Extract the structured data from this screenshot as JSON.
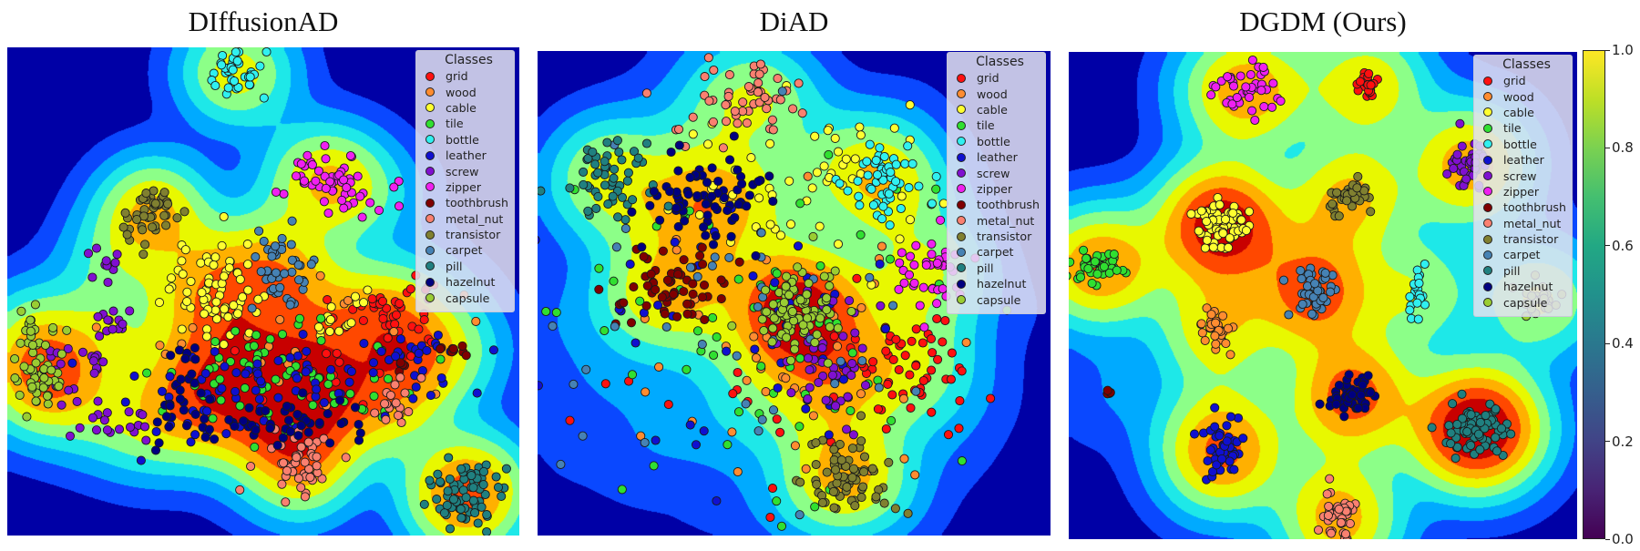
{
  "chart_data": [
    {
      "type": "scatter",
      "subtype": "t-SNE embedding with KDE density contours (jet colormap)",
      "title": "DIffusionAD",
      "xlabel": "",
      "ylabel": "",
      "xlim": [
        0,
        1
      ],
      "ylim": [
        0,
        1
      ],
      "grid": false,
      "legend": {
        "title": "Classes",
        "placement": "top-right"
      },
      "series": [
        {
          "name": "grid",
          "clusters": [
            {
              "x": 0.76,
              "y": 0.55,
              "sx": 0.04,
              "sy": 0.04,
              "n": 40
            },
            {
              "x": 0.62,
              "y": 0.66,
              "sx": 0.1,
              "sy": 0.05,
              "n": 25
            }
          ]
        },
        {
          "name": "wood",
          "clusters": [
            {
              "x": 0.5,
              "y": 0.62,
              "sx": 0.16,
              "sy": 0.07,
              "n": 25
            }
          ]
        },
        {
          "name": "cable",
          "clusters": [
            {
              "x": 0.4,
              "y": 0.5,
              "sx": 0.05,
              "sy": 0.05,
              "n": 70
            },
            {
              "x": 0.63,
              "y": 0.57,
              "sx": 0.02,
              "sy": 0.015,
              "n": 12
            },
            {
              "x": 0.7,
              "y": 0.51,
              "sx": 0.01,
              "sy": 0.01,
              "n": 4
            }
          ]
        },
        {
          "name": "tile",
          "clusters": [
            {
              "x": 0.56,
              "y": 0.67,
              "sx": 0.14,
              "sy": 0.05,
              "n": 70
            }
          ]
        },
        {
          "name": "bottle",
          "clusters": [
            {
              "x": 0.45,
              "y": 0.05,
              "sx": 0.03,
              "sy": 0.025,
              "n": 35
            }
          ]
        },
        {
          "name": "leather",
          "clusters": [
            {
              "x": 0.53,
              "y": 0.71,
              "sx": 0.14,
              "sy": 0.05,
              "n": 80
            },
            {
              "x": 0.78,
              "y": 0.63,
              "sx": 0.04,
              "sy": 0.03,
              "n": 20
            }
          ]
        },
        {
          "name": "screw",
          "clusters": [
            {
              "x": 0.19,
              "y": 0.43,
              "sx": 0.02,
              "sy": 0.02,
              "n": 12
            },
            {
              "x": 0.21,
              "y": 0.55,
              "sx": 0.02,
              "sy": 0.02,
              "n": 12
            },
            {
              "x": 0.17,
              "y": 0.64,
              "sx": 0.015,
              "sy": 0.025,
              "n": 10
            },
            {
              "x": 0.22,
              "y": 0.77,
              "sx": 0.04,
              "sy": 0.02,
              "n": 18
            },
            {
              "x": 0.12,
              "y": 0.7,
              "sx": 0.015,
              "sy": 0.04,
              "n": 10
            },
            {
              "x": 0.09,
              "y": 0.62,
              "sx": 0.01,
              "sy": 0.01,
              "n": 3
            }
          ]
        },
        {
          "name": "zipper",
          "clusters": [
            {
              "x": 0.63,
              "y": 0.28,
              "sx": 0.05,
              "sy": 0.04,
              "n": 55
            }
          ]
        },
        {
          "name": "toothbrush",
          "clusters": [
            {
              "x": 0.87,
              "y": 0.62,
              "sx": 0.015,
              "sy": 0.008,
              "n": 10
            },
            {
              "x": 0.77,
              "y": 0.66,
              "sx": 0.004,
              "sy": 0.01,
              "n": 4
            }
          ]
        },
        {
          "name": "metal_nut",
          "clusters": [
            {
              "x": 0.57,
              "y": 0.86,
              "sx": 0.04,
              "sy": 0.035,
              "n": 45
            },
            {
              "x": 0.75,
              "y": 0.74,
              "sx": 0.02,
              "sy": 0.03,
              "n": 18
            }
          ]
        },
        {
          "name": "transistor",
          "clusters": [
            {
              "x": 0.28,
              "y": 0.34,
              "sx": 0.025,
              "sy": 0.03,
              "n": 45
            }
          ]
        },
        {
          "name": "carpet",
          "clusters": [
            {
              "x": 0.54,
              "y": 0.46,
              "sx": 0.035,
              "sy": 0.05,
              "n": 45
            }
          ]
        },
        {
          "name": "pill",
          "clusters": [
            {
              "x": 0.9,
              "y": 0.91,
              "sx": 0.04,
              "sy": 0.035,
              "n": 70
            }
          ]
        },
        {
          "name": "hazelnut",
          "clusters": [
            {
              "x": 0.5,
              "y": 0.76,
              "sx": 0.12,
              "sy": 0.03,
              "n": 60
            },
            {
              "x": 0.35,
              "y": 0.68,
              "sx": 0.015,
              "sy": 0.04,
              "n": 18
            }
          ]
        },
        {
          "name": "capsule",
          "clusters": [
            {
              "x": 0.06,
              "y": 0.66,
              "sx": 0.025,
              "sy": 0.04,
              "n": 55
            },
            {
              "x": 0.045,
              "y": 0.57,
              "sx": 0.006,
              "sy": 0.025,
              "n": 10
            }
          ]
        }
      ]
    },
    {
      "type": "scatter",
      "subtype": "t-SNE embedding with KDE density contours (jet colormap)",
      "title": "DiAD",
      "xlabel": "",
      "ylabel": "",
      "xlim": [
        0,
        1
      ],
      "ylim": [
        0,
        1
      ],
      "grid": false,
      "legend": {
        "title": "Classes",
        "placement": "top-right"
      },
      "series": [
        {
          "name": "grid",
          "clusters": [
            {
              "x": 0.73,
              "y": 0.65,
              "sx": 0.06,
              "sy": 0.06,
              "n": 55
            },
            {
              "x": 0.45,
              "y": 0.75,
              "sx": 0.18,
              "sy": 0.1,
              "n": 20
            }
          ]
        },
        {
          "name": "wood",
          "clusters": [
            {
              "x": 0.45,
              "y": 0.65,
              "sx": 0.22,
              "sy": 0.15,
              "n": 45
            }
          ]
        },
        {
          "name": "cable",
          "clusters": [
            {
              "x": 0.52,
              "y": 0.26,
              "sx": 0.12,
              "sy": 0.09,
              "n": 55
            }
          ]
        },
        {
          "name": "tile",
          "clusters": [
            {
              "x": 0.4,
              "y": 0.6,
              "sx": 0.25,
              "sy": 0.2,
              "n": 70
            }
          ]
        },
        {
          "name": "bottle",
          "clusters": [
            {
              "x": 0.67,
              "y": 0.27,
              "sx": 0.04,
              "sy": 0.045,
              "n": 55
            }
          ]
        },
        {
          "name": "leather",
          "clusters": [
            {
              "x": 0.38,
              "y": 0.58,
              "sx": 0.18,
              "sy": 0.14,
              "n": 50
            }
          ]
        },
        {
          "name": "screw",
          "clusters": [
            {
              "x": 0.57,
              "y": 0.64,
              "sx": 0.05,
              "sy": 0.06,
              "n": 45
            }
          ]
        },
        {
          "name": "zipper",
          "clusters": [
            {
              "x": 0.77,
              "y": 0.46,
              "sx": 0.035,
              "sy": 0.035,
              "n": 40
            }
          ]
        },
        {
          "name": "toothbrush",
          "clusters": [
            {
              "x": 0.24,
              "y": 0.49,
              "sx": 0.06,
              "sy": 0.04,
              "n": 60
            }
          ]
        },
        {
          "name": "metal_nut",
          "clusters": [
            {
              "x": 0.38,
              "y": 0.1,
              "sx": 0.07,
              "sy": 0.04,
              "n": 55
            }
          ]
        },
        {
          "name": "transistor",
          "clusters": [
            {
              "x": 0.6,
              "y": 0.87,
              "sx": 0.045,
              "sy": 0.04,
              "n": 70
            }
          ]
        },
        {
          "name": "carpet",
          "clusters": [
            {
              "x": 0.45,
              "y": 0.55,
              "sx": 0.22,
              "sy": 0.17,
              "n": 45
            }
          ]
        },
        {
          "name": "pill",
          "clusters": [
            {
              "x": 0.13,
              "y": 0.27,
              "sx": 0.05,
              "sy": 0.04,
              "n": 55
            }
          ]
        },
        {
          "name": "hazelnut",
          "clusters": [
            {
              "x": 0.32,
              "y": 0.31,
              "sx": 0.06,
              "sy": 0.05,
              "n": 70
            }
          ]
        },
        {
          "name": "capsule",
          "clusters": [
            {
              "x": 0.51,
              "y": 0.53,
              "sx": 0.04,
              "sy": 0.04,
              "n": 90
            }
          ]
        }
      ]
    },
    {
      "type": "scatter",
      "subtype": "t-SNE embedding with KDE density contours (jet colormap)",
      "title": "DGDM (Ours)",
      "xlabel": "",
      "ylabel": "",
      "xlim": [
        0,
        1
      ],
      "ylim": [
        0,
        1
      ],
      "grid": false,
      "legend": {
        "title": "Classes",
        "placement": "top-right"
      },
      "colorbar": {
        "range": [
          0.0,
          1.0
        ],
        "ticks": [
          "0.0",
          "0.2",
          "0.4",
          "0.6",
          "0.8",
          "1.0"
        ],
        "colormap": "viridis"
      },
      "series": [
        {
          "name": "grid",
          "clusters": [
            {
              "x": 0.59,
              "y": 0.07,
              "sx": 0.015,
              "sy": 0.015,
              "n": 30
            }
          ]
        },
        {
          "name": "wood",
          "clusters": [
            {
              "x": 0.29,
              "y": 0.57,
              "sx": 0.015,
              "sy": 0.02,
              "n": 30
            }
          ]
        },
        {
          "name": "cable",
          "clusters": [
            {
              "x": 0.3,
              "y": 0.35,
              "sx": 0.025,
              "sy": 0.03,
              "n": 70
            }
          ]
        },
        {
          "name": "tile",
          "clusters": [
            {
              "x": 0.06,
              "y": 0.44,
              "sx": 0.03,
              "sy": 0.015,
              "n": 45
            }
          ]
        },
        {
          "name": "bottle",
          "clusters": [
            {
              "x": 0.685,
              "y": 0.49,
              "sx": 0.008,
              "sy": 0.03,
              "n": 22
            }
          ]
        },
        {
          "name": "leather",
          "clusters": [
            {
              "x": 0.3,
              "y": 0.81,
              "sx": 0.02,
              "sy": 0.035,
              "n": 50
            }
          ]
        },
        {
          "name": "screw",
          "clusters": [
            {
              "x": 0.79,
              "y": 0.23,
              "sx": 0.02,
              "sy": 0.025,
              "n": 40
            }
          ]
        },
        {
          "name": "zipper",
          "clusters": [
            {
              "x": 0.35,
              "y": 0.08,
              "sx": 0.03,
              "sy": 0.03,
              "n": 45
            }
          ]
        },
        {
          "name": "toothbrush",
          "clusters": [
            {
              "x": 0.08,
              "y": 0.7,
              "sx": 0.004,
              "sy": 0.004,
              "n": 4
            }
          ]
        },
        {
          "name": "metal_nut",
          "clusters": [
            {
              "x": 0.53,
              "y": 0.95,
              "sx": 0.02,
              "sy": 0.03,
              "n": 40
            }
          ]
        },
        {
          "name": "transistor",
          "clusters": [
            {
              "x": 0.55,
              "y": 0.3,
              "sx": 0.02,
              "sy": 0.02,
              "n": 35
            }
          ]
        },
        {
          "name": "carpet",
          "clusters": [
            {
              "x": 0.48,
              "y": 0.49,
              "sx": 0.022,
              "sy": 0.025,
              "n": 50
            }
          ]
        },
        {
          "name": "pill",
          "clusters": [
            {
              "x": 0.8,
              "y": 0.77,
              "sx": 0.03,
              "sy": 0.025,
              "n": 80
            }
          ]
        },
        {
          "name": "hazelnut",
          "clusters": [
            {
              "x": 0.55,
              "y": 0.71,
              "sx": 0.025,
              "sy": 0.02,
              "n": 50
            }
          ]
        },
        {
          "name": "capsule",
          "clusters": [
            {
              "x": 0.92,
              "y": 0.51,
              "sx": 0.02,
              "sy": 0.015,
              "n": 25
            }
          ]
        }
      ]
    }
  ],
  "legend": {
    "title": "Classes",
    "items": [
      {
        "label": "grid",
        "color": "#ff1010"
      },
      {
        "label": "wood",
        "color": "#ff8c30"
      },
      {
        "label": "cable",
        "color": "#ffff30"
      },
      {
        "label": "tile",
        "color": "#30e030"
      },
      {
        "label": "bottle",
        "color": "#30f0f0"
      },
      {
        "label": "leather",
        "color": "#1010d0"
      },
      {
        "label": "screw",
        "color": "#8010d0"
      },
      {
        "label": "zipper",
        "color": "#f020f0"
      },
      {
        "label": "toothbrush",
        "color": "#800000"
      },
      {
        "label": "metal_nut",
        "color": "#fa8070"
      },
      {
        "label": "transistor",
        "color": "#808030"
      },
      {
        "label": "carpet",
        "color": "#4682b4"
      },
      {
        "label": "pill",
        "color": "#208080"
      },
      {
        "label": "hazelnut",
        "color": "#000080"
      },
      {
        "label": "capsule",
        "color": "#9acd32"
      }
    ]
  },
  "density_levels": [
    "#0000a6",
    "#0a48ff",
    "#00aaff",
    "#1ee8e8",
    "#8cff88",
    "#e8f800",
    "#ffb000",
    "#ff4800",
    "#c80000"
  ]
}
